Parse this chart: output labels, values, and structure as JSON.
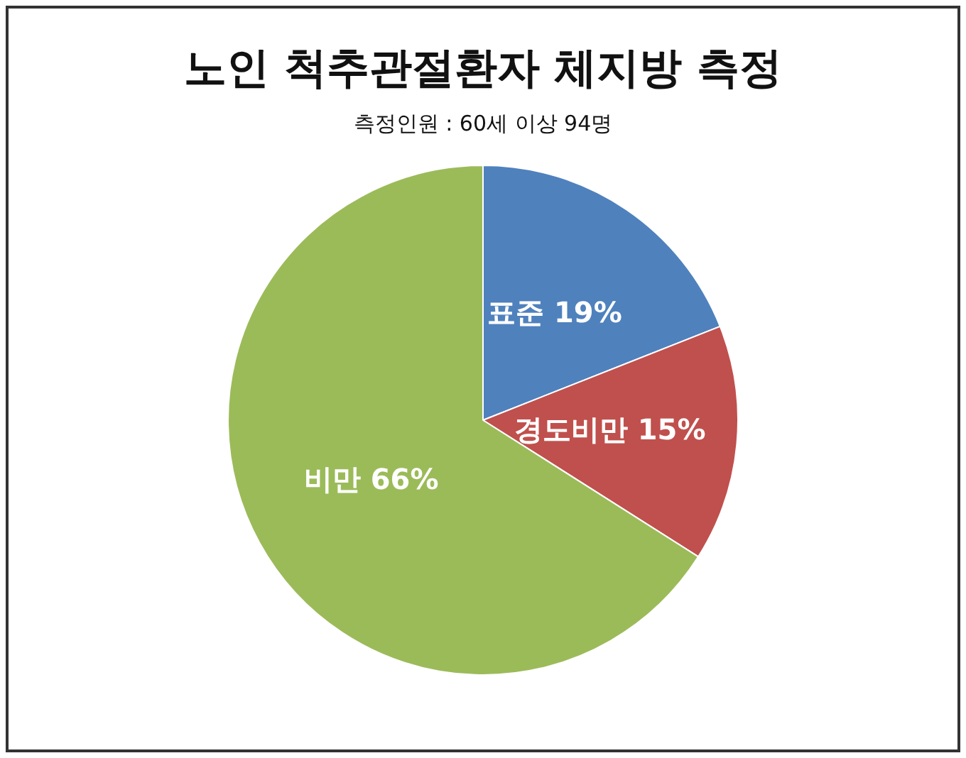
{
  "chart_data": {
    "type": "pie",
    "title": "노인 척추관절환자 체지방 측정",
    "subtitle": "측정인원 : 60세 이상 94명",
    "categories": [
      "표준",
      "경도비만",
      "비만"
    ],
    "values": [
      19,
      15,
      66
    ],
    "value_labels": [
      "19%",
      "15%",
      "66%"
    ],
    "colors": [
      "#4f81bd",
      "#c0504d",
      "#9bbb59"
    ],
    "legend": false
  }
}
